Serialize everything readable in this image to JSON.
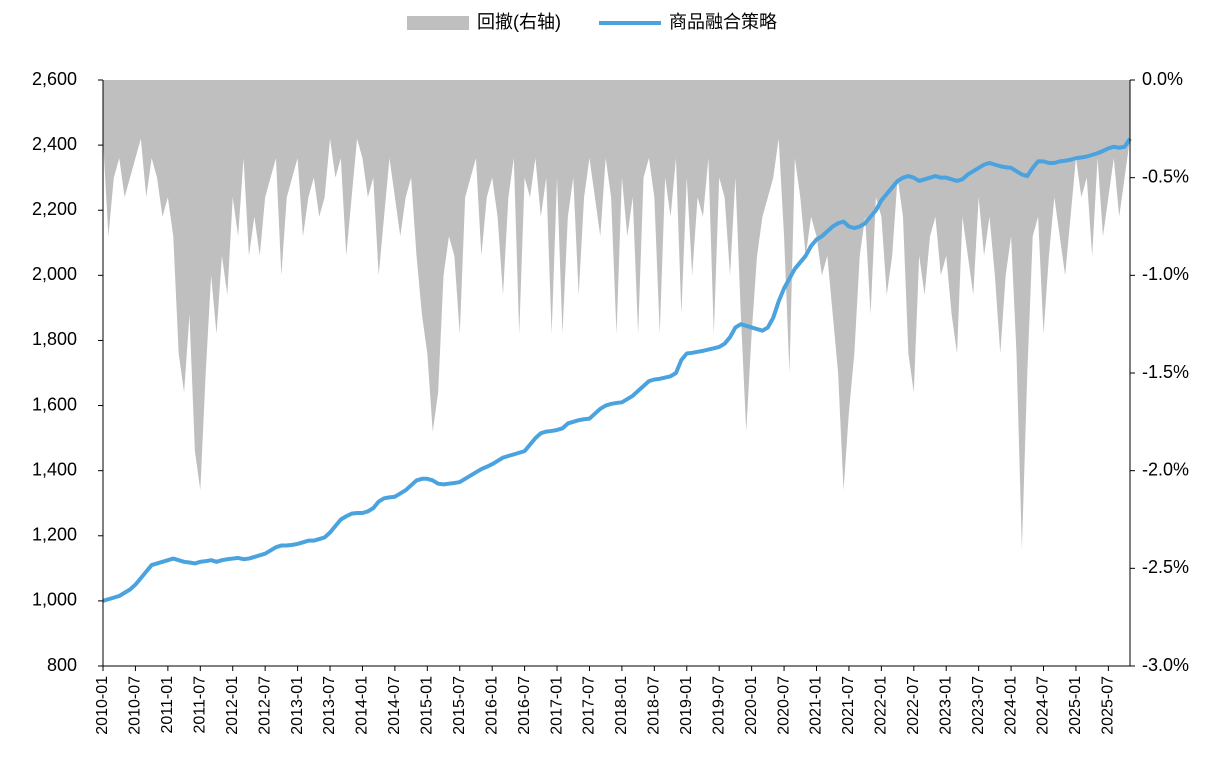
{
  "chart_data": {
    "type": "line",
    "categories": [
      "2010-01",
      null,
      null,
      null,
      null,
      null,
      "2010-07",
      null,
      null,
      null,
      null,
      null,
      "2011-01",
      null,
      null,
      null,
      null,
      null,
      "2011-07",
      null,
      null,
      null,
      null,
      null,
      "2012-01",
      null,
      null,
      null,
      null,
      null,
      "2012-07",
      null,
      null,
      null,
      null,
      null,
      "2013-01",
      null,
      null,
      null,
      null,
      null,
      "2013-07",
      null,
      null,
      null,
      null,
      null,
      "2014-01",
      null,
      null,
      null,
      null,
      null,
      "2014-07",
      null,
      null,
      null,
      null,
      null,
      "2015-01",
      null,
      null,
      null,
      null,
      null,
      "2015-07",
      null,
      null,
      null,
      null,
      null,
      "2016-01",
      null,
      null,
      null,
      null,
      null,
      "2016-07",
      null,
      null,
      null,
      null,
      null,
      "2017-01",
      null,
      null,
      null,
      null,
      null,
      "2017-07",
      null,
      null,
      null,
      null,
      null,
      "2018-01",
      null,
      null,
      null,
      null,
      null,
      "2018-07",
      null,
      null,
      null,
      null,
      null,
      "2019-01",
      null,
      null,
      null,
      null,
      null,
      "2019-07",
      null,
      null,
      null,
      null,
      null,
      "2020-01",
      null,
      null,
      null,
      null,
      null,
      "2020-07",
      null,
      null,
      null,
      null,
      null,
      "2021-01",
      null,
      null,
      null,
      null,
      null,
      "2021-07",
      null,
      null,
      null,
      null,
      null,
      "2022-01",
      null,
      null,
      null,
      null,
      null,
      "2022-07",
      null,
      null,
      null,
      null,
      null,
      "2023-01",
      null,
      null,
      null,
      null,
      null,
      "2023-07",
      null,
      null,
      null,
      null,
      null,
      "2024-01",
      null,
      null,
      null,
      null,
      null,
      "2024-07",
      null,
      null,
      null,
      null,
      null,
      "2025-01",
      null,
      null,
      null,
      null,
      null,
      "2025-07",
      null,
      null,
      null,
      null
    ],
    "series": [
      {
        "name": "回撤(右轴)",
        "type": "area",
        "axis": "y2",
        "color": "#bfbfbf",
        "values": [
          -0.3,
          -0.8,
          -0.5,
          -0.4,
          -0.6,
          -0.5,
          -0.4,
          -0.3,
          -0.6,
          -0.4,
          -0.5,
          -0.7,
          -0.6,
          -0.8,
          -1.4,
          -1.6,
          -1.2,
          -1.9,
          -2.1,
          -1.5,
          -1.0,
          -1.3,
          -0.9,
          -1.1,
          -0.6,
          -0.8,
          -0.4,
          -0.9,
          -0.7,
          -0.9,
          -0.6,
          -0.5,
          -0.4,
          -1.0,
          -0.6,
          -0.5,
          -0.4,
          -0.8,
          -0.6,
          -0.5,
          -0.7,
          -0.6,
          -0.3,
          -0.5,
          -0.4,
          -0.9,
          -0.6,
          -0.3,
          -0.4,
          -0.6,
          -0.5,
          -1.0,
          -0.7,
          -0.4,
          -0.6,
          -0.8,
          -0.6,
          -0.5,
          -0.9,
          -1.2,
          -1.4,
          -1.8,
          -1.6,
          -1.0,
          -0.8,
          -0.9,
          -1.3,
          -0.6,
          -0.5,
          -0.4,
          -0.9,
          -0.6,
          -0.5,
          -0.7,
          -1.1,
          -0.6,
          -0.4,
          -1.3,
          -0.5,
          -0.6,
          -0.4,
          -0.7,
          -0.5,
          -1.3,
          -0.5,
          -1.3,
          -0.7,
          -0.5,
          -1.1,
          -0.6,
          -0.4,
          -0.6,
          -0.8,
          -0.4,
          -0.6,
          -1.3,
          -0.5,
          -0.8,
          -0.6,
          -1.3,
          -0.5,
          -0.4,
          -0.6,
          -1.3,
          -0.5,
          -0.7,
          -0.4,
          -1.2,
          -0.5,
          -1.0,
          -0.6,
          -0.7,
          -0.4,
          -1.3,
          -0.5,
          -0.6,
          -1.0,
          -0.5,
          -1.2,
          -1.8,
          -1.3,
          -0.9,
          -0.7,
          -0.6,
          -0.5,
          -0.3,
          -0.8,
          -1.5,
          -0.4,
          -0.6,
          -0.9,
          -0.7,
          -0.8,
          -1.0,
          -0.9,
          -1.2,
          -1.5,
          -2.1,
          -1.7,
          -1.4,
          -0.9,
          -0.7,
          -1.2,
          -0.6,
          -0.7,
          -1.1,
          -0.9,
          -0.5,
          -0.7,
          -1.4,
          -1.6,
          -0.9,
          -1.1,
          -0.8,
          -0.7,
          -1.0,
          -0.9,
          -1.2,
          -1.4,
          -0.7,
          -0.9,
          -1.1,
          -0.6,
          -0.9,
          -0.7,
          -1.0,
          -1.4,
          -1.0,
          -0.8,
          -1.4,
          -2.4,
          -1.5,
          -0.8,
          -0.7,
          -1.3,
          -0.9,
          -0.6,
          -0.8,
          -1.0,
          -0.7,
          -0.4,
          -0.6,
          -0.5,
          -0.9,
          -0.4,
          -0.8,
          -0.6,
          -0.4,
          -0.7,
          -0.5,
          -0.3
        ]
      },
      {
        "name": "商品融合策略",
        "type": "line",
        "color": "#4aa3df",
        "values": [
          1000,
          1005,
          1010,
          1015,
          1025,
          1035,
          1050,
          1070,
          1090,
          1110,
          1115,
          1120,
          1125,
          1130,
          1125,
          1120,
          1118,
          1115,
          1120,
          1122,
          1125,
          1120,
          1125,
          1128,
          1130,
          1132,
          1128,
          1130,
          1135,
          1140,
          1145,
          1155,
          1165,
          1170,
          1170,
          1172,
          1175,
          1180,
          1185,
          1185,
          1190,
          1195,
          1210,
          1230,
          1250,
          1260,
          1268,
          1270,
          1270,
          1275,
          1285,
          1305,
          1315,
          1318,
          1320,
          1330,
          1340,
          1355,
          1370,
          1375,
          1375,
          1370,
          1360,
          1358,
          1360,
          1362,
          1365,
          1375,
          1385,
          1395,
          1405,
          1412,
          1420,
          1430,
          1440,
          1445,
          1450,
          1455,
          1460,
          1480,
          1500,
          1515,
          1520,
          1522,
          1525,
          1530,
          1545,
          1550,
          1555,
          1558,
          1560,
          1575,
          1590,
          1600,
          1605,
          1608,
          1610,
          1620,
          1630,
          1645,
          1660,
          1675,
          1680,
          1682,
          1686,
          1690,
          1700,
          1740,
          1760,
          1762,
          1765,
          1768,
          1772,
          1776,
          1780,
          1790,
          1810,
          1840,
          1850,
          1845,
          1840,
          1835,
          1830,
          1840,
          1870,
          1920,
          1960,
          1990,
          2020,
          2040,
          2060,
          2090,
          2110,
          2120,
          2135,
          2150,
          2160,
          2165,
          2150,
          2145,
          2150,
          2160,
          2180,
          2200,
          2230,
          2250,
          2270,
          2290,
          2300,
          2305,
          2300,
          2290,
          2295,
          2300,
          2305,
          2300,
          2300,
          2295,
          2290,
          2295,
          2310,
          2320,
          2330,
          2340,
          2345,
          2340,
          2335,
          2332,
          2330,
          2320,
          2310,
          2305,
          2330,
          2350,
          2350,
          2345,
          2345,
          2350,
          2352,
          2355,
          2360,
          2362,
          2365,
          2370,
          2375,
          2382,
          2390,
          2395,
          2392,
          2395,
          2420
        ]
      }
    ],
    "ylim": [
      800,
      2600
    ],
    "yticks": [
      800,
      {
        "value": 1000,
        "label": "1,000"
      },
      {
        "value": 1200,
        "label": "1,200"
      },
      {
        "value": 1400,
        "label": "1,400"
      },
      {
        "value": 1600,
        "label": "1,600"
      },
      {
        "value": 1800,
        "label": "1,800"
      },
      {
        "value": 2000,
        "label": "2,000"
      },
      {
        "value": 2200,
        "label": "2,200"
      },
      {
        "value": 2400,
        "label": "2,400"
      },
      {
        "value": 2600,
        "label": "2,600"
      }
    ],
    "y2lim": [
      -3.0,
      0.0
    ],
    "y2ticks": [
      {
        "value": -3.0,
        "label": "-3.0%"
      },
      {
        "value": -2.5,
        "label": "-2.5%"
      },
      {
        "value": -2.0,
        "label": "-2.0%"
      },
      {
        "value": -1.5,
        "label": "-1.5%"
      },
      {
        "value": -1.0,
        "label": "-1.0%"
      },
      {
        "value": -0.5,
        "label": "-0.5%"
      },
      {
        "value": 0.0,
        "label": "0.0%"
      }
    ],
    "legend": "top"
  }
}
